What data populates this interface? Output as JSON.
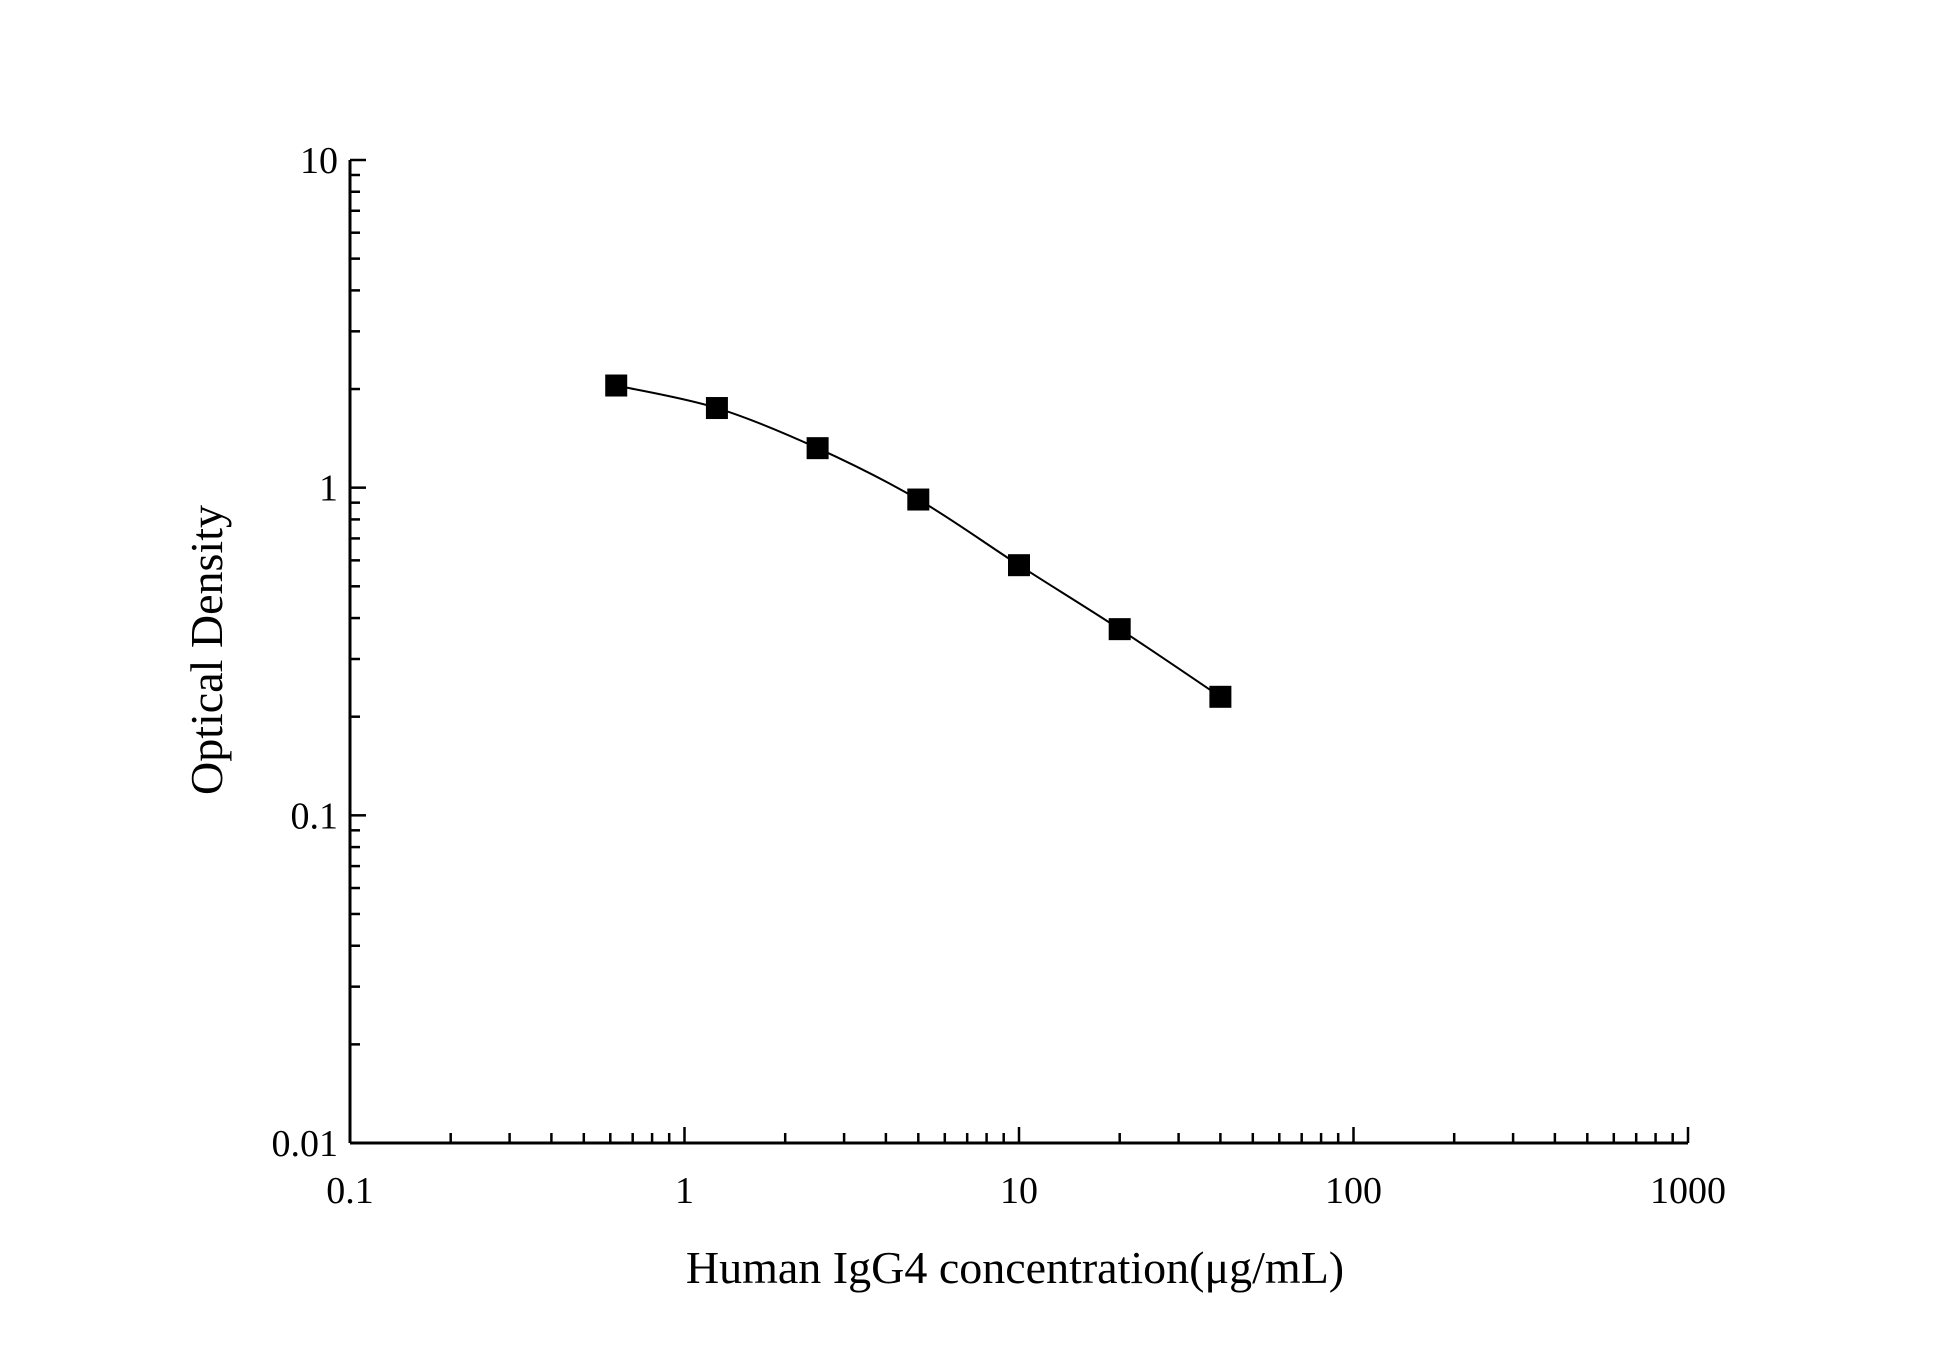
{
  "chart_data": {
    "type": "scatter",
    "title": "",
    "xlabel": "Human IgG4 concentration(μg/mL)",
    "ylabel": "Optical Density",
    "x_scale": "log",
    "y_scale": "log",
    "xlim": [
      0.1,
      1000
    ],
    "ylim": [
      0.01,
      10
    ],
    "x_ticks": [
      0.1,
      1,
      10,
      100,
      1000
    ],
    "x_tick_labels": [
      "0.1",
      "1",
      "10",
      "100",
      "1000"
    ],
    "y_ticks": [
      0.01,
      0.1,
      1,
      10
    ],
    "y_tick_labels": [
      "0.01",
      "0.1",
      "1",
      "10"
    ],
    "grid": false,
    "legend": "none",
    "marker": "square",
    "connected_line": true,
    "colors": {
      "marker": "#000000",
      "line": "#000000",
      "axis": "#000000"
    },
    "series": [
      {
        "x": [
          0.625,
          1.25,
          2.5,
          5,
          10,
          20,
          40
        ],
        "y": [
          2.05,
          1.75,
          1.32,
          0.92,
          0.58,
          0.37,
          0.23
        ]
      }
    ]
  }
}
